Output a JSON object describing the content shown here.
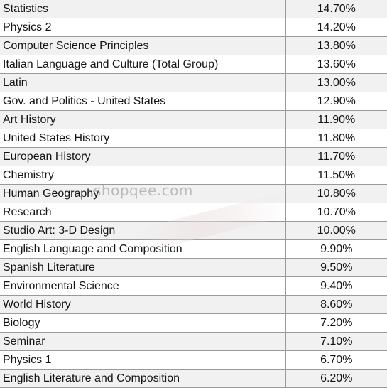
{
  "rows": [
    {
      "subject": "Statistics",
      "percent": "14.70%"
    },
    {
      "subject": "Physics 2",
      "percent": "14.20%"
    },
    {
      "subject": "Computer Science Principles",
      "percent": "13.80%"
    },
    {
      "subject": "Italian Language and Culture (Total Group)",
      "percent": "13.60%"
    },
    {
      "subject": "Latin",
      "percent": "13.00%"
    },
    {
      "subject": "Gov. and Politics - United States",
      "percent": "12.90%"
    },
    {
      "subject": "Art History",
      "percent": "11.90%"
    },
    {
      "subject": "United States History",
      "percent": "11.80%"
    },
    {
      "subject": "European History",
      "percent": "11.70%"
    },
    {
      "subject": "Chemistry",
      "percent": "11.50%"
    },
    {
      "subject": "Human Geography",
      "percent": "10.80%"
    },
    {
      "subject": "Research",
      "percent": "10.70%"
    },
    {
      "subject": "Studio Art: 3-D Design",
      "percent": "10.00%"
    },
    {
      "subject": "English Language and Composition",
      "percent": "9.90%"
    },
    {
      "subject": "Spanish Literature",
      "percent": "9.50%"
    },
    {
      "subject": "Environmental Science",
      "percent": "9.40%"
    },
    {
      "subject": "World History",
      "percent": "8.60%"
    },
    {
      "subject": "Biology",
      "percent": "7.20%"
    },
    {
      "subject": "Seminar",
      "percent": "7.10%"
    },
    {
      "subject": "Physics 1",
      "percent": "6.70%"
    },
    {
      "subject": "English Literature and Composition",
      "percent": "6.20%"
    }
  ],
  "watermark": {
    "text": "shopqee.com"
  }
}
